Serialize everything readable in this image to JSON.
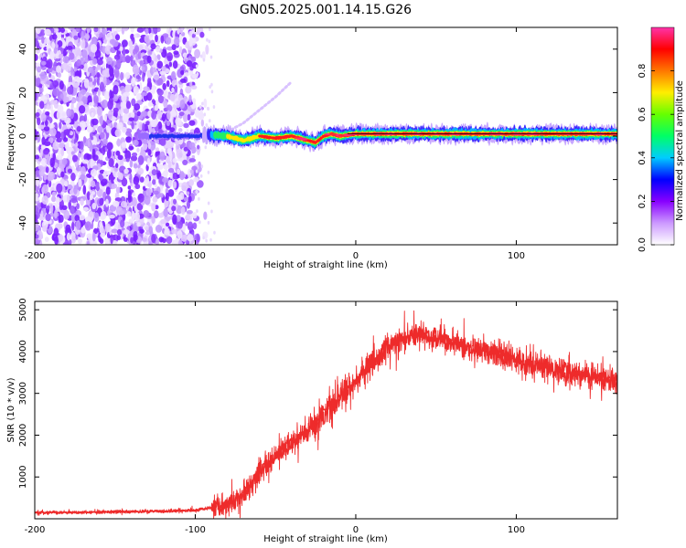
{
  "title": "GN05.2025.001.14.15.G26",
  "chart_data": [
    {
      "type": "heatmap",
      "name": "spectrogram",
      "xlabel": "Height of straight line (km)",
      "ylabel": "Frequency (Hz)",
      "xlim": [
        -200,
        163
      ],
      "ylim": [
        -50,
        50
      ],
      "xticks": [
        -200,
        -100,
        0,
        100
      ],
      "xtick_labels": [
        "-200",
        "-100",
        "0",
        "100"
      ],
      "yticks": [
        -40,
        -20,
        0,
        20,
        40
      ],
      "ytick_labels": [
        "-40",
        "-20",
        "0",
        "20",
        "40"
      ],
      "colorbar": {
        "label": "Normalized spectral amplitude",
        "range": [
          0,
          1
        ],
        "ticks": [
          0,
          0.2,
          0.4,
          0.6,
          0.8
        ],
        "tick_labels": [
          "0.0",
          "0.2",
          "0.4",
          "0.6",
          "0.8"
        ],
        "colors": [
          "#ffffff",
          "#cc99ff",
          "#8800ff",
          "#0000ff",
          "#00ccff",
          "#00ff66",
          "#66ff00",
          "#ffee00",
          "#ff7700",
          "#ff0000",
          "#ff33aa"
        ]
      },
      "noise_region_x": [
        -200,
        -100
      ],
      "ridge": {
        "x": [
          -135,
          -120,
          -100,
          -90,
          -80,
          -70,
          -60,
          -50,
          -40,
          -30,
          -25,
          -20,
          -15,
          -10,
          0,
          50,
          100,
          163
        ],
        "y": [
          0,
          0,
          0,
          0.5,
          0,
          -2,
          0,
          -1,
          0,
          -2,
          -3,
          0,
          1,
          0,
          1,
          1,
          1,
          1
        ]
      },
      "faint_arc": {
        "x": [
          -80,
          -70,
          -60,
          -50,
          -40
        ],
        "y": [
          2,
          6,
          12,
          18,
          25
        ]
      }
    },
    {
      "type": "line",
      "name": "snr",
      "xlabel": "Height of straight line (km)",
      "ylabel": "SNR (10 * v/v)",
      "xlim": [
        -200,
        163
      ],
      "ylim": [
        0,
        5200
      ],
      "xticks": [
        -200,
        -100,
        0,
        100
      ],
      "xtick_labels": [
        "-200",
        "-100",
        "0",
        "100"
      ],
      "yticks": [
        1000,
        2000,
        3000,
        4000,
        5000
      ],
      "ytick_labels": [
        "1000",
        "2000",
        "3000",
        "4000",
        "5000"
      ],
      "color": "#ee2b2b",
      "series": [
        {
          "name": "SNR",
          "x": [
            -200,
            -180,
            -160,
            -140,
            -120,
            -100,
            -90,
            -80,
            -70,
            -60,
            -50,
            -40,
            -30,
            -20,
            -10,
            0,
            10,
            20,
            30,
            40,
            50,
            60,
            80,
            100,
            120,
            140,
            163
          ],
          "y": [
            150,
            150,
            160,
            170,
            180,
            200,
            260,
            350,
            600,
            1100,
            1500,
            1800,
            2100,
            2500,
            2900,
            3300,
            3700,
            4100,
            4300,
            4400,
            4350,
            4200,
            4000,
            3800,
            3600,
            3450,
            3300
          ]
        }
      ]
    }
  ]
}
